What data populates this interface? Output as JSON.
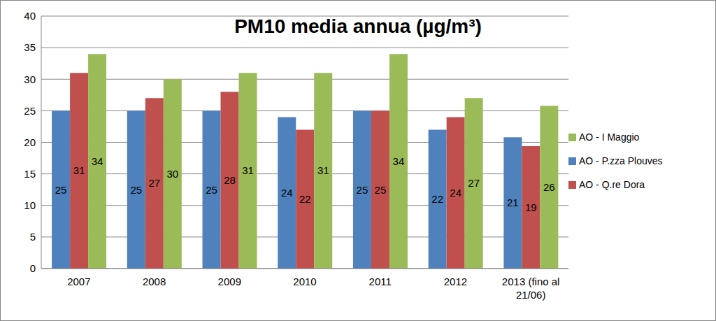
{
  "chart_data": {
    "type": "bar",
    "title": "PM10 media annua (µg/m³)",
    "categories": [
      "2007",
      "2008",
      "2009",
      "2010",
      "2011",
      "2012",
      "2013 (fino al 21/06)"
    ],
    "series": [
      {
        "name": "AO - P.zza Plouves",
        "color": "#4f81bd",
        "values": [
          25,
          25,
          25,
          24,
          25,
          22,
          20.8
        ],
        "value_labels": [
          "25",
          "25",
          "25",
          "24",
          "25",
          "22",
          "21"
        ]
      },
      {
        "name": "AO - Q.re Dora",
        "color": "#c0504d",
        "values": [
          31,
          27,
          28,
          22,
          25,
          24,
          19.4
        ],
        "value_labels": [
          "31",
          "27",
          "28",
          "22",
          "25",
          "24",
          "19"
        ]
      },
      {
        "name": "AO - I  Maggio",
        "color": "#9bbb59",
        "values": [
          34,
          30,
          31,
          31,
          34,
          27,
          25.8
        ],
        "value_labels": [
          "34",
          "30",
          "31",
          "31",
          "34",
          "27",
          "26"
        ]
      }
    ],
    "ylim": [
      0,
      40
    ],
    "yticks": [
      0,
      5,
      10,
      15,
      20,
      25,
      30,
      35,
      40
    ],
    "grid": true,
    "legend": "right",
    "data_labels": true
  }
}
